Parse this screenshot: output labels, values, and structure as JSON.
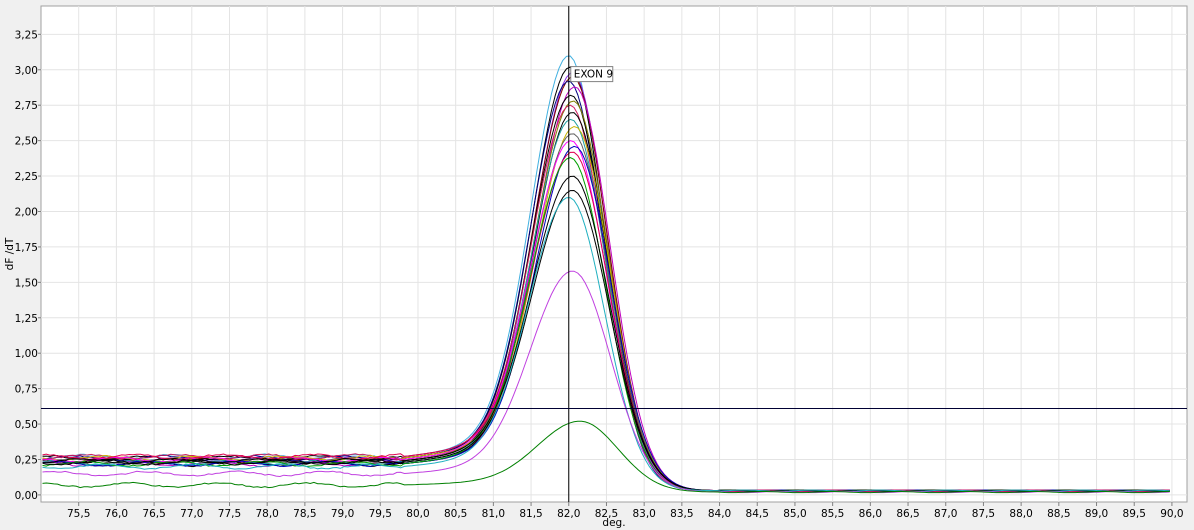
{
  "chart_data": {
    "type": "line",
    "title": "",
    "xlabel": "deg.",
    "ylabel": "dF /dT",
    "xlim": [
      75.0,
      90.2
    ],
    "ylim": [
      -0.05,
      3.45
    ],
    "x_ticks": [
      "75,5",
      "76,0",
      "76,5",
      "77,0",
      "77,5",
      "78,0",
      "78,5",
      "79,0",
      "79,5",
      "80,0",
      "80,5",
      "81,0",
      "81,5",
      "82,0",
      "82,5",
      "83,0",
      "83,5",
      "84,0",
      "84,5",
      "85,0",
      "85,5",
      "86,0",
      "86,5",
      "87,0",
      "87,5",
      "88,0",
      "88,5",
      "89,0",
      "89,5",
      "90,0"
    ],
    "y_ticks": [
      "0,00",
      "0,25",
      "0,50",
      "0,75",
      "1,00",
      "1,25",
      "1,50",
      "1,75",
      "2,00",
      "2,25",
      "2,50",
      "2,75",
      "3,00",
      "3,25"
    ],
    "grid": true,
    "cursor": {
      "x": 82.0,
      "y": 0.61
    },
    "annotation": {
      "text": "EXON 9",
      "x": 82.0,
      "y": 2.98
    },
    "melt_peak_series": [
      {
        "color": "#40b0e0",
        "base": 0.27,
        "peak": 3.1,
        "tm": 82.0,
        "width": 0.5,
        "tail": 0.03
      },
      {
        "color": "#000000",
        "base": 0.26,
        "peak": 3.02,
        "tm": 82.02,
        "width": 0.5,
        "tail": 0.03
      },
      {
        "color": "#8a2be2",
        "base": 0.25,
        "peak": 2.98,
        "tm": 82.05,
        "width": 0.5,
        "tail": 0.03
      },
      {
        "color": "#800000",
        "base": 0.24,
        "peak": 2.95,
        "tm": 82.05,
        "width": 0.51,
        "tail": 0.03
      },
      {
        "color": "#000080",
        "base": 0.26,
        "peak": 2.92,
        "tm": 82.0,
        "width": 0.5,
        "tail": 0.03
      },
      {
        "color": "#c000c0",
        "base": 0.22,
        "peak": 2.88,
        "tm": 82.08,
        "width": 0.51,
        "tail": 0.03
      },
      {
        "color": "#000000",
        "base": 0.24,
        "peak": 2.82,
        "tm": 82.03,
        "width": 0.51,
        "tail": 0.03
      },
      {
        "color": "#808000",
        "base": 0.25,
        "peak": 2.78,
        "tm": 82.06,
        "width": 0.51,
        "tail": 0.03
      },
      {
        "color": "#d02060",
        "base": 0.27,
        "peak": 2.75,
        "tm": 82.02,
        "width": 0.5,
        "tail": 0.03
      },
      {
        "color": "#000000",
        "base": 0.22,
        "peak": 2.7,
        "tm": 82.05,
        "width": 0.51,
        "tail": 0.03
      },
      {
        "color": "#20a0a0",
        "base": 0.23,
        "peak": 2.65,
        "tm": 82.03,
        "width": 0.51,
        "tail": 0.03
      },
      {
        "color": "#c8b400",
        "base": 0.26,
        "peak": 2.6,
        "tm": 82.08,
        "width": 0.51,
        "tail": 0.03
      },
      {
        "color": "#606060",
        "base": 0.24,
        "peak": 2.55,
        "tm": 82.05,
        "width": 0.52,
        "tail": 0.03
      },
      {
        "color": "#ff00ff",
        "base": 0.25,
        "peak": 2.5,
        "tm": 82.03,
        "width": 0.52,
        "tail": 0.03
      },
      {
        "color": "#0000c0",
        "base": 0.22,
        "peak": 2.46,
        "tm": 82.08,
        "width": 0.52,
        "tail": 0.03
      },
      {
        "color": "#e00050",
        "base": 0.27,
        "peak": 2.42,
        "tm": 82.05,
        "width": 0.52,
        "tail": 0.03
      },
      {
        "color": "#00a000",
        "base": 0.22,
        "peak": 2.38,
        "tm": 82.02,
        "width": 0.52,
        "tail": 0.03
      },
      {
        "color": "#000000",
        "base": 0.24,
        "peak": 2.25,
        "tm": 82.05,
        "width": 0.53,
        "tail": 0.03
      },
      {
        "color": "#000000",
        "base": 0.23,
        "peak": 2.15,
        "tm": 82.05,
        "width": 0.53,
        "tail": 0.03
      },
      {
        "color": "#20b0c0",
        "base": 0.2,
        "peak": 2.1,
        "tm": 82.0,
        "width": 0.52,
        "tail": 0.03
      },
      {
        "color": "#c040e0",
        "base": 0.15,
        "peak": 1.58,
        "tm": 82.05,
        "width": 0.55,
        "tail": 0.02
      },
      {
        "color": "#008000",
        "base": 0.07,
        "peak": 0.52,
        "tm": 82.15,
        "width": 0.55,
        "tail": 0.02
      }
    ]
  }
}
